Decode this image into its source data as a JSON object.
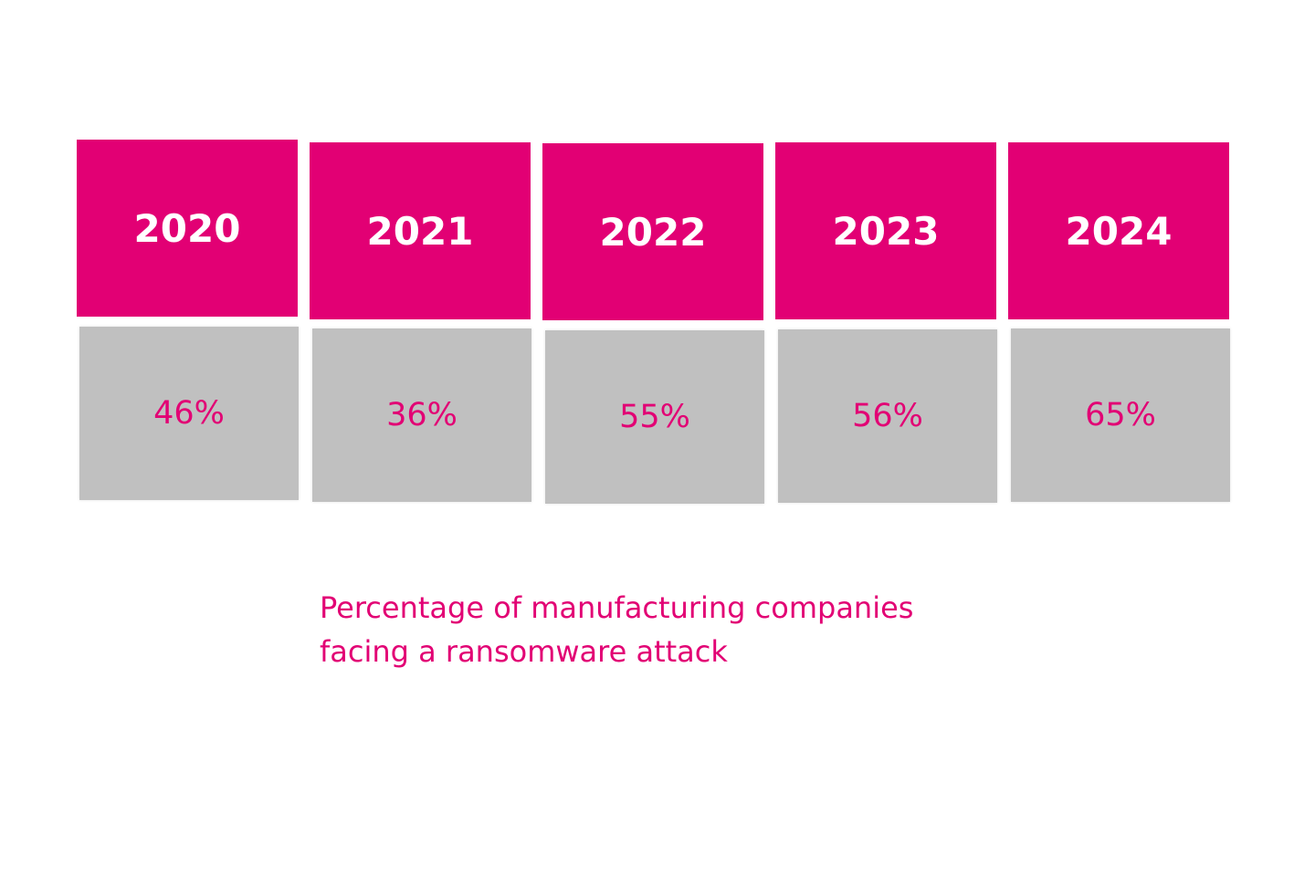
{
  "chart_data": {
    "type": "table",
    "categories": [
      "2020",
      "2021",
      "2022",
      "2023",
      "2024"
    ],
    "series": [
      {
        "name": "Percentage of manufacturing companies facing a ransomware attack",
        "values": [
          46,
          36,
          55,
          56,
          65
        ]
      }
    ],
    "value_labels": [
      "46%",
      "36%",
      "55%",
      "56%",
      "65%"
    ],
    "caption_lines": [
      "Percentage of manufacturing companies",
      "facing a ransomware attack"
    ]
  },
  "colors": {
    "accent": "#E20074",
    "value_bg": "#C0C0C0",
    "background": "#FFFFFF"
  }
}
